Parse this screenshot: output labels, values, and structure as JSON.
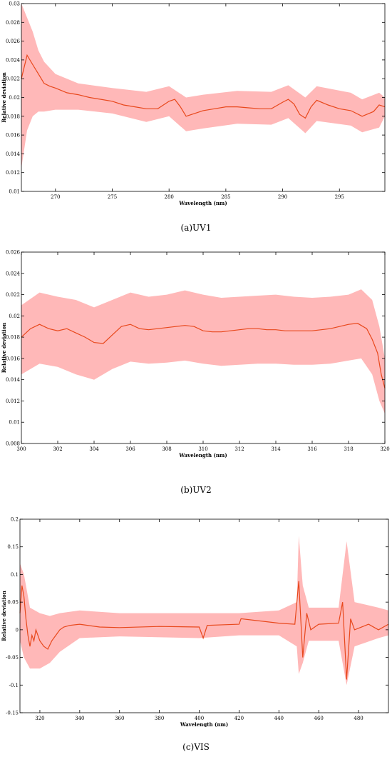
{
  "colors": {
    "mean_line": "#e8481c",
    "band_fill": "#ffb8b8",
    "axis": "#000000"
  },
  "chart_data": [
    {
      "type": "line",
      "caption": "(a)UV1",
      "xlabel": "Wavelength (nm)",
      "ylabel": "Relative deviation",
      "xlim": [
        267,
        299
      ],
      "ylim": [
        0.01,
        0.03
      ],
      "xticks": [
        "270",
        "275",
        "280",
        "285",
        "290",
        "295"
      ],
      "yticks": [
        "0.01",
        "0.012",
        "0.014",
        "0.016",
        "0.018",
        "0.02",
        "0.022",
        "0.024",
        "0.026",
        "0.028",
        "0.03"
      ],
      "grid": false,
      "series": [
        {
          "kind": "mean",
          "x": [
            267,
            267.5,
            268,
            268.5,
            269,
            269.5,
            270,
            271,
            272,
            273,
            274,
            275,
            276,
            277,
            278,
            279,
            280,
            280.5,
            281,
            281.5,
            282,
            283,
            284,
            285,
            286,
            287,
            288,
            289,
            290,
            290.5,
            291,
            291.5,
            292,
            292.5,
            293,
            294,
            295,
            296,
            297,
            298,
            298.5,
            299
          ],
          "y": [
            0.022,
            0.0245,
            0.0235,
            0.0225,
            0.0215,
            0.0212,
            0.021,
            0.0205,
            0.0203,
            0.02,
            0.0198,
            0.0196,
            0.0192,
            0.019,
            0.0188,
            0.0188,
            0.0196,
            0.0198,
            0.019,
            0.018,
            0.0182,
            0.0186,
            0.0188,
            0.019,
            0.019,
            0.0189,
            0.0188,
            0.0188,
            0.0195,
            0.0198,
            0.0193,
            0.0182,
            0.0178,
            0.019,
            0.0197,
            0.0192,
            0.0188,
            0.0186,
            0.018,
            0.0185,
            0.0192,
            0.019
          ]
        },
        {
          "kind": "band",
          "x": [
            267,
            267.5,
            268,
            268.5,
            269,
            270,
            272,
            275,
            278,
            280,
            281.5,
            283,
            286,
            289,
            290.5,
            292,
            293,
            296,
            297,
            298.5,
            299
          ],
          "upper": [
            0.03,
            0.0285,
            0.027,
            0.025,
            0.0238,
            0.0225,
            0.0215,
            0.021,
            0.0206,
            0.0212,
            0.02,
            0.0203,
            0.0207,
            0.0206,
            0.0213,
            0.02,
            0.0212,
            0.0205,
            0.0198,
            0.0205,
            0.02
          ],
          "lower": [
            0.0125,
            0.0165,
            0.018,
            0.0185,
            0.0185,
            0.0187,
            0.0187,
            0.0183,
            0.0174,
            0.018,
            0.0164,
            0.0167,
            0.0172,
            0.0171,
            0.0178,
            0.0162,
            0.0175,
            0.017,
            0.0163,
            0.0168,
            0.018
          ]
        }
      ]
    },
    {
      "type": "line",
      "caption": "(b)UV2",
      "xlabel": "Wavelength (nm)",
      "ylabel": "Relative deviation",
      "xlim": [
        300,
        320
      ],
      "ylim": [
        0.008,
        0.026
      ],
      "xticks": [
        "300",
        "302",
        "304",
        "306",
        "308",
        "310",
        "312",
        "314",
        "316",
        "318",
        "320"
      ],
      "yticks": [
        "0.008",
        "0.01",
        "0.012",
        "0.014",
        "0.016",
        "0.018",
        "0.02",
        "0.022",
        "0.024",
        "0.026"
      ],
      "grid": false,
      "series": [
        {
          "kind": "mean",
          "x": [
            300,
            300.5,
            301,
            301.5,
            302,
            302.5,
            303,
            303.5,
            304,
            304.5,
            305,
            305.5,
            306,
            306.5,
            307,
            307.5,
            308,
            308.5,
            309,
            309.5,
            310,
            310.5,
            311,
            311.5,
            312,
            312.5,
            313,
            313.5,
            314,
            314.5,
            315,
            315.5,
            316,
            316.5,
            317,
            317.5,
            318,
            318.5,
            319,
            319.3,
            319.6,
            319.8,
            320
          ],
          "y": [
            0.018,
            0.0188,
            0.0192,
            0.0188,
            0.0186,
            0.0188,
            0.0184,
            0.018,
            0.0175,
            0.0174,
            0.0182,
            0.019,
            0.0192,
            0.0188,
            0.0187,
            0.0188,
            0.0189,
            0.019,
            0.0191,
            0.019,
            0.0186,
            0.0185,
            0.0185,
            0.0186,
            0.0187,
            0.0188,
            0.0188,
            0.0187,
            0.0187,
            0.0186,
            0.0186,
            0.0186,
            0.0186,
            0.0187,
            0.0188,
            0.019,
            0.0192,
            0.0193,
            0.0188,
            0.0178,
            0.0165,
            0.0145,
            0.0132
          ]
        },
        {
          "kind": "band",
          "x": [
            300,
            301,
            302,
            303,
            304,
            305,
            306,
            307,
            308,
            309,
            310,
            311,
            312,
            313,
            314,
            315,
            316,
            317,
            318,
            318.7,
            319.3,
            319.7,
            320
          ],
          "upper": [
            0.021,
            0.0222,
            0.0218,
            0.0215,
            0.0208,
            0.0215,
            0.0222,
            0.0218,
            0.022,
            0.0224,
            0.022,
            0.0217,
            0.0218,
            0.0219,
            0.022,
            0.0218,
            0.0217,
            0.0218,
            0.022,
            0.0225,
            0.0215,
            0.019,
            0.016
          ],
          "lower": [
            0.0145,
            0.0155,
            0.0152,
            0.0145,
            0.014,
            0.015,
            0.0157,
            0.0155,
            0.0156,
            0.0158,
            0.0155,
            0.0153,
            0.0154,
            0.0155,
            0.0155,
            0.0154,
            0.0154,
            0.0155,
            0.0158,
            0.016,
            0.0145,
            0.012,
            0.0108
          ]
        }
      ]
    },
    {
      "type": "line",
      "caption": "(c)VIS",
      "xlabel": "Wavelength (nm)",
      "ylabel": "Relative deviation",
      "xlim": [
        310,
        495
      ],
      "ylim": [
        -0.15,
        0.2
      ],
      "xticks": [
        "320",
        "340",
        "360",
        "380",
        "400",
        "420",
        "440",
        "460",
        "480"
      ],
      "yticks": [
        "-0.15",
        "-0.1",
        "-0.05",
        "0",
        "0.05",
        "0.1",
        "0.15",
        "0.2"
      ],
      "grid": false,
      "series": [
        {
          "kind": "mean",
          "x": [
            310,
            311,
            312,
            313,
            314,
            315,
            316,
            317,
            318,
            320,
            322,
            324,
            326,
            328,
            330,
            332,
            335,
            340,
            350,
            360,
            380,
            400,
            402,
            404,
            420,
            421,
            440,
            448,
            450,
            452,
            454,
            456,
            460,
            470,
            472,
            474,
            476,
            478,
            485,
            490,
            495
          ],
          "y": [
            0.03,
            0.08,
            0.06,
            0.02,
            -0.01,
            -0.03,
            -0.01,
            -0.02,
            0.0,
            -0.02,
            -0.03,
            -0.035,
            -0.02,
            -0.01,
            0.0,
            0.005,
            0.008,
            0.01,
            0.005,
            0.004,
            0.006,
            0.005,
            -0.015,
            0.008,
            0.01,
            0.02,
            0.012,
            0.01,
            0.088,
            -0.05,
            0.03,
            0.0,
            0.01,
            0.012,
            0.05,
            -0.09,
            0.02,
            0.0,
            0.01,
            0.0,
            0.01
          ]
        },
        {
          "kind": "band",
          "x": [
            310,
            312,
            315,
            320,
            325,
            330,
            340,
            360,
            400,
            420,
            440,
            449,
            450,
            452,
            455,
            470,
            474,
            478,
            490,
            495
          ],
          "upper": [
            0.12,
            0.1,
            0.04,
            0.03,
            0.025,
            0.03,
            0.035,
            0.03,
            0.03,
            0.03,
            0.035,
            0.05,
            0.17,
            0.08,
            0.04,
            0.04,
            0.16,
            0.05,
            0.04,
            0.035
          ],
          "lower": [
            -0.02,
            -0.05,
            -0.07,
            -0.07,
            -0.06,
            -0.04,
            -0.015,
            -0.012,
            -0.015,
            -0.01,
            -0.01,
            -0.03,
            -0.08,
            -0.06,
            -0.02,
            -0.02,
            -0.1,
            -0.03,
            -0.015,
            -0.01
          ]
        }
      ]
    }
  ]
}
